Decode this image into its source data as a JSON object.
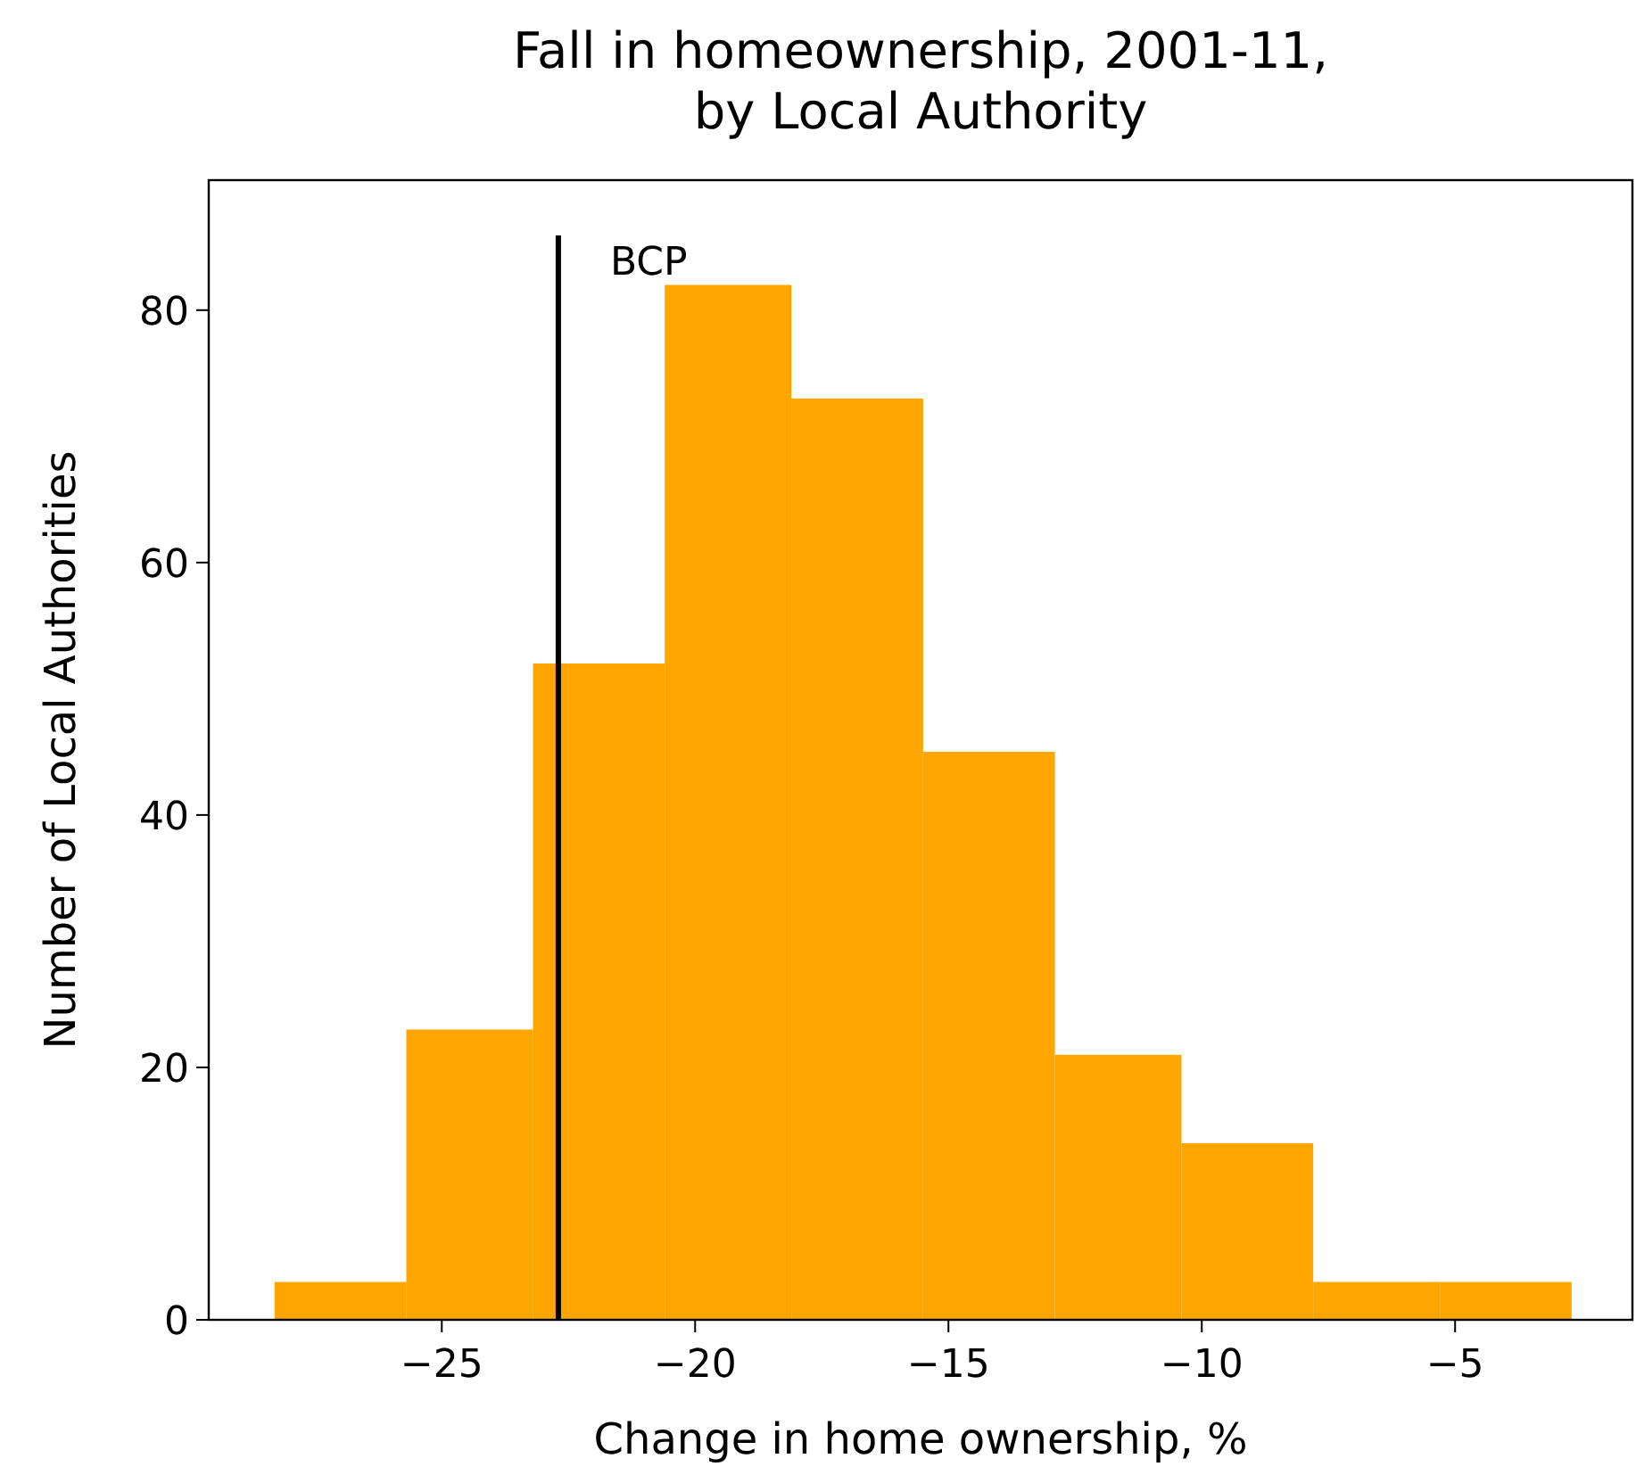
{
  "chart_data": {
    "type": "histogram",
    "title": "Fall in homeownership, 2001-11,\nby Local Authority",
    "xlabel": "Change in home ownership, %",
    "ylabel": "Number of Local Authorities",
    "bins": [
      -28.3,
      -25.7,
      -23.2,
      -20.6,
      -18.1,
      -15.5,
      -12.9,
      -10.4,
      -7.8,
      -5.3,
      -2.7
    ],
    "values": [
      3,
      23,
      52,
      82,
      73,
      45,
      21,
      14,
      3,
      3
    ],
    "color": "#ffa500",
    "xlim": [
      -29.6,
      -1.5
    ],
    "xticks": [
      {
        "value": -25,
        "label": "−25"
      },
      {
        "value": -20,
        "label": "−20"
      },
      {
        "value": -15,
        "label": "−15"
      },
      {
        "value": -10,
        "label": "−10"
      },
      {
        "value": -5,
        "label": "−5"
      }
    ],
    "ylim": [
      0,
      90.3
    ],
    "yticks": [
      0,
      20,
      40,
      60,
      80
    ],
    "ref_lines": [
      {
        "axis": "x",
        "value": -22.7,
        "label": "BCP",
        "color": "#000000"
      }
    ],
    "grid": false
  }
}
